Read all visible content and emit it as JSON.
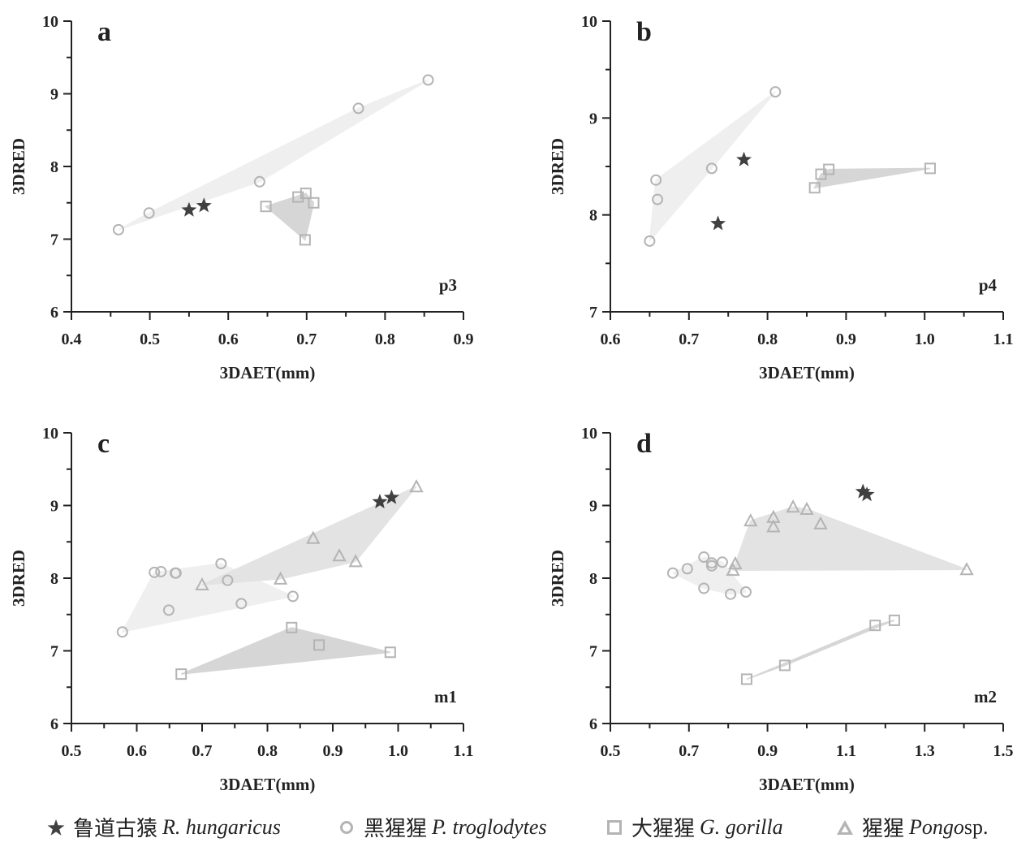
{
  "styles": {
    "star_color": "#404040",
    "marker_stroke": "#b4b4b4",
    "hull_light": "#efefef",
    "hull_mid": "#e3e3e3",
    "hull_dark": "#d6d6d6",
    "axis_color": "#222222"
  },
  "legend": [
    {
      "symbol": "star",
      "cn": "鲁道古猿",
      "latin": "R. hungaricus",
      "suffix": ""
    },
    {
      "symbol": "circle",
      "cn": "黑猩猩",
      "latin": "P. troglodytes",
      "suffix": ""
    },
    {
      "symbol": "square",
      "cn": "大猩猩",
      "latin": "G. gorilla",
      "suffix": ""
    },
    {
      "symbol": "triangle",
      "cn": "猩猩",
      "latin": "Pongo",
      "suffix": " sp."
    }
  ],
  "chart_data": [
    {
      "type": "scatter",
      "panel": "a",
      "tooth": "p3",
      "xlabel": "3DAET(mm)",
      "ylabel": "3DRED",
      "xlim": [
        0.4,
        0.9
      ],
      "ylim": [
        6,
        10
      ],
      "xticks": [
        "0.4",
        "0.5",
        "0.6",
        "0.7",
        "0.8",
        "0.9"
      ],
      "yticks": [
        "6",
        "7",
        "8",
        "9",
        "10"
      ],
      "series": [
        {
          "name": "R. hungaricus",
          "marker": "star",
          "points": [
            [
              0.55,
              7.4
            ],
            [
              0.569,
              7.46
            ]
          ]
        },
        {
          "name": "P. troglodytes",
          "marker": "circle",
          "hull": "light",
          "points": [
            [
              0.46,
              7.13
            ],
            [
              0.499,
              7.36
            ],
            [
              0.64,
              7.79
            ],
            [
              0.766,
              8.8
            ],
            [
              0.855,
              9.19
            ]
          ]
        },
        {
          "name": "G. gorilla",
          "marker": "square",
          "hull": "dark",
          "points": [
            [
              0.648,
              7.45
            ],
            [
              0.689,
              7.58
            ],
            [
              0.699,
              7.63
            ],
            [
              0.709,
              7.5
            ],
            [
              0.698,
              6.99
            ]
          ]
        }
      ]
    },
    {
      "type": "scatter",
      "panel": "b",
      "tooth": "p4",
      "xlabel": "3DAET(mm)",
      "ylabel": "3DRED",
      "xlim": [
        0.6,
        1.1
      ],
      "ylim": [
        7,
        10
      ],
      "xticks": [
        "0.6",
        "0.7",
        "0.8",
        "0.9",
        "1.0",
        "1.1"
      ],
      "yticks": [
        "7",
        "8",
        "9",
        "10"
      ],
      "series": [
        {
          "name": "R. hungaricus",
          "marker": "star",
          "points": [
            [
              0.77,
              8.57
            ],
            [
              0.737,
              7.91
            ]
          ]
        },
        {
          "name": "P. troglodytes",
          "marker": "circle",
          "hull": "light",
          "points": [
            [
              0.65,
              7.73
            ],
            [
              0.66,
              8.16
            ],
            [
              0.658,
              8.36
            ],
            [
              0.729,
              8.48
            ],
            [
              0.81,
              9.27
            ]
          ]
        },
        {
          "name": "G. gorilla",
          "marker": "square",
          "hull": "dark",
          "points": [
            [
              0.86,
              8.28
            ],
            [
              0.868,
              8.42
            ],
            [
              0.878,
              8.47
            ],
            [
              1.007,
              8.48
            ]
          ]
        }
      ]
    },
    {
      "type": "scatter",
      "panel": "c",
      "tooth": "m1",
      "xlabel": "3DAET(mm)",
      "ylabel": "3DRED",
      "xlim": [
        0.5,
        1.1
      ],
      "ylim": [
        6,
        10
      ],
      "xticks": [
        "0.5",
        "0.6",
        "0.7",
        "0.8",
        "0.9",
        "1.0",
        "1.1"
      ],
      "yticks": [
        "6",
        "7",
        "8",
        "9",
        "10"
      ],
      "series": [
        {
          "name": "P. troglodytes",
          "marker": "circle",
          "hull": "light",
          "points": [
            [
              0.578,
              7.26
            ],
            [
              0.627,
              8.08
            ],
            [
              0.637,
              8.09
            ],
            [
              0.659,
              8.07
            ],
            [
              0.66,
              8.07
            ],
            [
              0.649,
              7.56
            ],
            [
              0.729,
              8.2
            ],
            [
              0.739,
              7.97
            ],
            [
              0.76,
              7.65
            ],
            [
              0.839,
              7.75
            ]
          ]
        },
        {
          "name": "Pongo sp.",
          "marker": "triangle",
          "hull": "mid",
          "points": [
            [
              0.7,
              7.91
            ],
            [
              0.82,
              7.99
            ],
            [
              0.87,
              8.55
            ],
            [
              0.91,
              8.31
            ],
            [
              0.935,
              8.23
            ],
            [
              1.028,
              9.26
            ]
          ]
        },
        {
          "name": "G. gorilla",
          "marker": "square",
          "hull": "dark",
          "points": [
            [
              0.668,
              6.68
            ],
            [
              0.837,
              7.32
            ],
            [
              0.879,
              7.08
            ],
            [
              0.988,
              6.98
            ]
          ]
        },
        {
          "name": "R. hungaricus",
          "marker": "star",
          "points": [
            [
              0.972,
              9.05
            ],
            [
              0.99,
              9.11
            ]
          ]
        }
      ]
    },
    {
      "type": "scatter",
      "panel": "d",
      "tooth": "m2",
      "xlabel": "3DAET(mm)",
      "ylabel": "3DRED",
      "xlim": [
        0.5,
        1.5
      ],
      "ylim": [
        6,
        10
      ],
      "xticks": [
        "0.5",
        "0.7",
        "0.9",
        "1.1",
        "1.3",
        "1.5"
      ],
      "xtick_values": [
        0.5,
        0.7,
        0.9,
        1.1,
        1.3,
        1.5
      ],
      "yticks": [
        "6",
        "7",
        "8",
        "9",
        "10"
      ],
      "series": [
        {
          "name": "P. troglodytes",
          "marker": "circle",
          "hull": "light",
          "points": [
            [
              0.659,
              8.07
            ],
            [
              0.696,
              8.13
            ],
            [
              0.738,
              8.29
            ],
            [
              0.758,
              8.17
            ],
            [
              0.758,
              8.21
            ],
            [
              0.785,
              8.22
            ],
            [
              0.738,
              7.86
            ],
            [
              0.806,
              7.78
            ],
            [
              0.845,
              7.81
            ]
          ]
        },
        {
          "name": "Pongo sp.",
          "marker": "triangle",
          "hull": "mid",
          "points": [
            [
              0.818,
              8.2
            ],
            [
              0.812,
              8.11
            ],
            [
              0.857,
              8.79
            ],
            [
              0.915,
              8.84
            ],
            [
              0.915,
              8.71
            ],
            [
              0.965,
              8.98
            ],
            [
              1.0,
              8.95
            ],
            [
              1.035,
              8.75
            ],
            [
              1.407,
              8.12
            ]
          ]
        },
        {
          "name": "G. gorilla",
          "marker": "square",
          "hull": "dark",
          "points": [
            [
              0.847,
              6.61
            ],
            [
              0.944,
              6.8
            ],
            [
              1.174,
              7.35
            ],
            [
              1.223,
              7.42
            ]
          ]
        },
        {
          "name": "R. hungaricus",
          "marker": "star",
          "points": [
            [
              1.143,
              9.19
            ],
            [
              1.153,
              9.15
            ]
          ]
        }
      ]
    }
  ]
}
